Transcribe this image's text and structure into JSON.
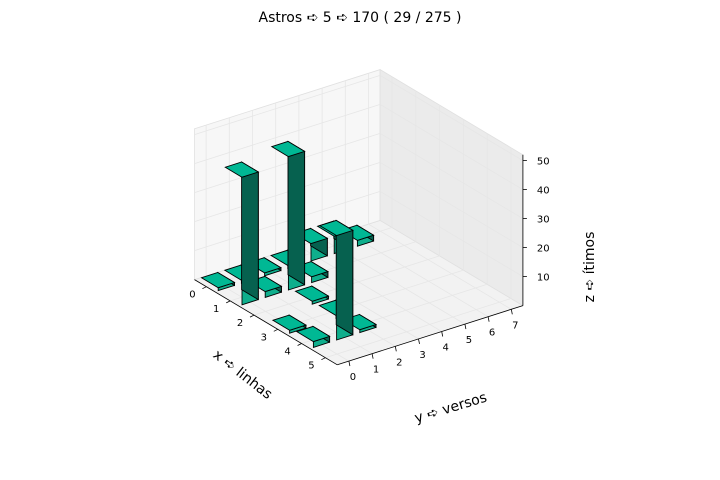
{
  "chart_data": {
    "type": "bar3d",
    "title": "Astros ➪ 5 ➪ 170 ( 29 / 275 )",
    "xlabel": "x ➪ linhas",
    "ylabel": "y ➪ versos",
    "zlabel": "z ➪ ítimos",
    "x_ticks": [
      "0",
      "1",
      "2",
      "3",
      "4",
      "5"
    ],
    "y_ticks": [
      "0",
      "1",
      "2",
      "3",
      "4",
      "5",
      "6",
      "7"
    ],
    "z_ticks": [
      "10",
      "20",
      "30",
      "40",
      "50"
    ],
    "xlim": [
      0,
      5
    ],
    "ylim": [
      0,
      7
    ],
    "zlim": [
      0,
      50
    ],
    "bar_color": "#00b894",
    "grid": true,
    "bars": [
      {
        "x": 0,
        "y": 0,
        "z": 1
      },
      {
        "x": 0,
        "y": 1,
        "z": 1
      },
      {
        "x": 0,
        "y": 2,
        "z": 1
      },
      {
        "x": 0,
        "y": 3,
        "z": 1
      },
      {
        "x": 0,
        "y": 4,
        "z": 6
      },
      {
        "x": 0,
        "y": 5,
        "z": 6
      },
      {
        "x": 0,
        "y": 6,
        "z": 2
      },
      {
        "x": 1,
        "y": 0,
        "z": 44
      },
      {
        "x": 1,
        "y": 1,
        "z": 2
      },
      {
        "x": 1,
        "y": 2,
        "z": 46
      },
      {
        "x": 1,
        "y": 3,
        "z": 2
      },
      {
        "x": 2,
        "y": 2,
        "z": 1
      },
      {
        "x": 3,
        "y": 0,
        "z": 1
      },
      {
        "x": 3,
        "y": 2,
        "z": 1
      },
      {
        "x": 4,
        "y": 0,
        "z": 2
      },
      {
        "x": 4,
        "y": 1,
        "z": 36
      },
      {
        "x": 4,
        "y": 2,
        "z": 1
      }
    ]
  }
}
